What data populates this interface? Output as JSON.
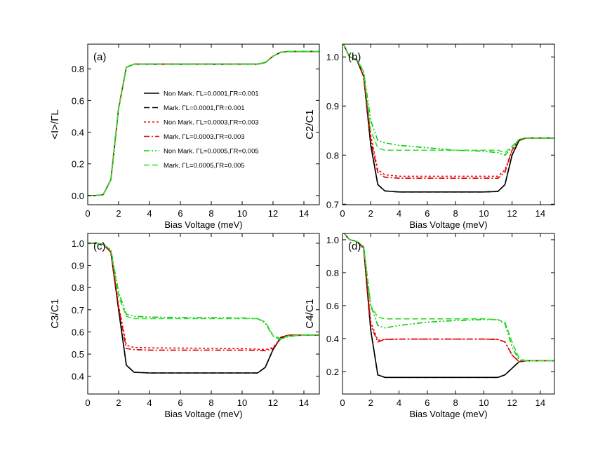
{
  "chart_data": [
    {
      "type": "line",
      "label": "(a)",
      "xlabel": "Bias Voltage (meV)",
      "ylabel": "<I>/ΓL",
      "xlim": [
        0,
        15
      ],
      "xticks": [
        0,
        2,
        4,
        6,
        8,
        10,
        12,
        14
      ],
      "ylim": [
        -0.058,
        0.956
      ],
      "yticks": [
        {
          "value": 0,
          "label": "0.0"
        },
        0.2,
        0.4,
        0.6,
        0.8
      ],
      "legend": "upper center",
      "x": [
        0,
        0.5,
        1,
        1.5,
        2,
        2.5,
        3,
        4,
        6,
        8,
        10,
        11,
        11.5,
        12,
        12.5,
        13,
        14,
        15
      ],
      "series": [
        {
          "name": "Non Mark. ΓL=0.0001,ΓR=0.001",
          "color": "#000000",
          "dash": "solid",
          "values": [
            0,
            0,
            0.005,
            0.1,
            0.55,
            0.81,
            0.83,
            0.83,
            0.83,
            0.83,
            0.83,
            0.83,
            0.84,
            0.88,
            0.905,
            0.91,
            0.91,
            0.91
          ]
        },
        {
          "name": "Mark. ΓL=0.0001,ΓR=0.001",
          "color": "#000000",
          "dash": "dashed",
          "values": [
            0,
            0,
            0.005,
            0.1,
            0.55,
            0.81,
            0.83,
            0.83,
            0.83,
            0.83,
            0.83,
            0.83,
            0.84,
            0.88,
            0.905,
            0.91,
            0.91,
            0.91
          ]
        },
        {
          "name": "Non Mark. ΓL=0.0003,ΓR=0.003",
          "color": "#ff0000",
          "dash": "dotted",
          "values": [
            0,
            0,
            0.005,
            0.1,
            0.55,
            0.81,
            0.83,
            0.83,
            0.83,
            0.83,
            0.83,
            0.83,
            0.84,
            0.88,
            0.905,
            0.91,
            0.91,
            0.91
          ]
        },
        {
          "name": "Mark. ΓL=0.0003,ΓR=0.003",
          "color": "#cc0000",
          "dash": "dashdot",
          "values": [
            0,
            0,
            0.005,
            0.1,
            0.55,
            0.81,
            0.83,
            0.83,
            0.83,
            0.83,
            0.83,
            0.83,
            0.84,
            0.88,
            0.905,
            0.91,
            0.91,
            0.91
          ]
        },
        {
          "name": "Non Mark. ΓL=0.0005,ΓR=0.005",
          "color": "#00cc00",
          "dash": "dashdotdot",
          "values": [
            0,
            0,
            0.005,
            0.1,
            0.55,
            0.81,
            0.83,
            0.83,
            0.83,
            0.83,
            0.83,
            0.83,
            0.84,
            0.88,
            0.905,
            0.91,
            0.91,
            0.91
          ]
        },
        {
          "name": "Mark. ΓL=0.0005,ΓR=0.005",
          "color": "#33dd33",
          "dash": "dashed",
          "values": [
            0,
            0,
            0.005,
            0.1,
            0.55,
            0.81,
            0.83,
            0.83,
            0.83,
            0.83,
            0.83,
            0.83,
            0.84,
            0.88,
            0.905,
            0.91,
            0.91,
            0.91
          ]
        }
      ]
    },
    {
      "type": "line",
      "label": "(b)",
      "xlabel": "Bias Voltage (meV)",
      "ylabel": "C2/C1",
      "xlim": [
        0,
        15
      ],
      "xticks": [
        0,
        2,
        4,
        6,
        8,
        10,
        12,
        14
      ],
      "ylim": [
        0.699,
        1.026
      ],
      "yticks": [
        0.7,
        0.8,
        0.9,
        {
          "value": 1,
          "label": "1.0"
        }
      ],
      "x": [
        0,
        0.5,
        1,
        1.5,
        2,
        2.5,
        3,
        4,
        6,
        8,
        10,
        11,
        11.5,
        12,
        12.5,
        13,
        14,
        15
      ],
      "series": [
        {
          "color": "#000000",
          "dash": "solid",
          "values": [
            1.03,
            1.0,
            0.995,
            0.96,
            0.82,
            0.74,
            0.727,
            0.725,
            0.725,
            0.725,
            0.725,
            0.726,
            0.74,
            0.8,
            0.83,
            0.835,
            0.835,
            0.835
          ]
        },
        {
          "color": "#000000",
          "dash": "dashed",
          "values": [
            1.03,
            1.0,
            0.995,
            0.96,
            0.82,
            0.74,
            0.727,
            0.725,
            0.725,
            0.725,
            0.725,
            0.726,
            0.74,
            0.8,
            0.83,
            0.835,
            0.835,
            0.835
          ]
        },
        {
          "color": "#ff0000",
          "dash": "dotted",
          "values": [
            1.03,
            1.0,
            0.995,
            0.96,
            0.84,
            0.77,
            0.76,
            0.757,
            0.757,
            0.757,
            0.757,
            0.757,
            0.77,
            0.81,
            0.832,
            0.835,
            0.835,
            0.835
          ]
        },
        {
          "color": "#cc0000",
          "dash": "dashdot",
          "values": [
            1.03,
            1.0,
            0.995,
            0.96,
            0.83,
            0.765,
            0.755,
            0.753,
            0.753,
            0.753,
            0.753,
            0.753,
            0.765,
            0.81,
            0.832,
            0.835,
            0.835,
            0.835
          ]
        },
        {
          "color": "#00cc00",
          "dash": "dashdotdot",
          "values": [
            1.03,
            1.0,
            0.995,
            0.97,
            0.87,
            0.83,
            0.825,
            0.82,
            0.815,
            0.81,
            0.808,
            0.805,
            0.8,
            0.815,
            0.832,
            0.835,
            0.835,
            0.835
          ]
        },
        {
          "color": "#33dd33",
          "dash": "dashed",
          "values": [
            1.03,
            1.0,
            0.995,
            0.97,
            0.85,
            0.815,
            0.81,
            0.81,
            0.81,
            0.81,
            0.81,
            0.81,
            0.805,
            0.818,
            0.832,
            0.835,
            0.835,
            0.835
          ]
        }
      ]
    },
    {
      "type": "line",
      "label": "(c)",
      "xlabel": "Bias Voltage (meV)",
      "ylabel": "C3/C1",
      "xlim": [
        0,
        15
      ],
      "xticks": [
        0,
        2,
        4,
        6,
        8,
        10,
        12,
        14
      ],
      "ylim": [
        0.32,
        1.044
      ],
      "yticks": [
        0.4,
        0.5,
        0.6,
        0.7,
        0.8,
        0.9,
        {
          "value": 1,
          "label": "1.0"
        }
      ],
      "x": [
        0,
        0.5,
        1,
        1.5,
        2,
        2.5,
        3,
        4,
        6,
        8,
        10,
        11,
        11.5,
        12,
        12.5,
        13,
        14,
        15
      ],
      "series": [
        {
          "color": "#000000",
          "dash": "solid",
          "values": [
            1,
            1,
            0.995,
            0.96,
            0.7,
            0.45,
            0.418,
            0.415,
            0.415,
            0.415,
            0.415,
            0.415,
            0.44,
            0.52,
            0.575,
            0.585,
            0.585,
            0.585
          ]
        },
        {
          "color": "#000000",
          "dash": "dashed",
          "values": [
            1,
            1,
            0.995,
            0.96,
            0.7,
            0.45,
            0.418,
            0.415,
            0.415,
            0.415,
            0.415,
            0.415,
            0.44,
            0.52,
            0.575,
            0.585,
            0.585,
            0.585
          ]
        },
        {
          "color": "#ff0000",
          "dash": "dotted",
          "values": [
            1,
            1,
            0.995,
            0.96,
            0.72,
            0.54,
            0.53,
            0.528,
            0.527,
            0.526,
            0.525,
            0.522,
            0.52,
            0.53,
            0.57,
            0.585,
            0.585,
            0.585
          ]
        },
        {
          "color": "#cc0000",
          "dash": "dashdot",
          "values": [
            1,
            1,
            0.995,
            0.96,
            0.71,
            0.525,
            0.52,
            0.518,
            0.518,
            0.518,
            0.518,
            0.517,
            0.515,
            0.525,
            0.57,
            0.585,
            0.585,
            0.585
          ]
        },
        {
          "color": "#00cc00",
          "dash": "dashdotdot",
          "values": [
            1,
            1,
            0.995,
            0.97,
            0.78,
            0.68,
            0.67,
            0.667,
            0.665,
            0.664,
            0.663,
            0.66,
            0.64,
            0.58,
            0.565,
            0.58,
            0.585,
            0.585
          ]
        },
        {
          "color": "#33dd33",
          "dash": "dashed",
          "values": [
            1,
            1,
            0.995,
            0.97,
            0.76,
            0.67,
            0.66,
            0.66,
            0.66,
            0.66,
            0.66,
            0.66,
            0.645,
            0.585,
            0.57,
            0.582,
            0.585,
            0.585
          ]
        }
      ]
    },
    {
      "type": "line",
      "label": "(d)",
      "xlabel": "Bias Voltage (meV)",
      "ylabel": "C4/C1",
      "xlim": [
        0,
        15
      ],
      "xticks": [
        0,
        2,
        4,
        6,
        8,
        10,
        12,
        14
      ],
      "ylim": [
        0.064,
        1.038
      ],
      "yticks": [
        0.2,
        0.4,
        0.6,
        0.8,
        {
          "value": 1,
          "label": "1.0"
        }
      ],
      "x": [
        0,
        0.5,
        1,
        1.5,
        2,
        2.5,
        3,
        4,
        6,
        8,
        10,
        11,
        11.5,
        12,
        12.5,
        13,
        14,
        15
      ],
      "series": [
        {
          "color": "#000000",
          "dash": "solid",
          "values": [
            1.05,
            1.0,
            0.99,
            0.95,
            0.45,
            0.18,
            0.165,
            0.165,
            0.165,
            0.165,
            0.165,
            0.165,
            0.18,
            0.22,
            0.26,
            0.265,
            0.265,
            0.265
          ]
        },
        {
          "color": "#000000",
          "dash": "dashed",
          "values": [
            1.05,
            1.0,
            0.99,
            0.95,
            0.45,
            0.18,
            0.165,
            0.165,
            0.165,
            0.165,
            0.165,
            0.165,
            0.18,
            0.22,
            0.26,
            0.265,
            0.265,
            0.265
          ]
        },
        {
          "color": "#ff0000",
          "dash": "dotted",
          "values": [
            1.05,
            1.0,
            0.99,
            0.95,
            0.5,
            0.39,
            0.395,
            0.397,
            0.397,
            0.397,
            0.397,
            0.395,
            0.38,
            0.3,
            0.26,
            0.265,
            0.265,
            0.265
          ]
        },
        {
          "color": "#cc0000",
          "dash": "dashdot",
          "values": [
            1.05,
            1.0,
            0.99,
            0.95,
            0.48,
            0.38,
            0.395,
            0.397,
            0.397,
            0.397,
            0.397,
            0.395,
            0.38,
            0.3,
            0.26,
            0.265,
            0.265,
            0.265
          ]
        },
        {
          "color": "#00cc00",
          "dash": "dashdotdot",
          "values": [
            1.05,
            1.0,
            0.99,
            0.96,
            0.6,
            0.48,
            0.465,
            0.48,
            0.5,
            0.51,
            0.515,
            0.515,
            0.49,
            0.35,
            0.27,
            0.265,
            0.265,
            0.265
          ]
        },
        {
          "color": "#33dd33",
          "dash": "dashed",
          "values": [
            1.05,
            1.0,
            0.99,
            0.96,
            0.6,
            0.53,
            0.52,
            0.52,
            0.52,
            0.52,
            0.52,
            0.515,
            0.5,
            0.38,
            0.28,
            0.265,
            0.265,
            0.265
          ]
        }
      ]
    }
  ]
}
